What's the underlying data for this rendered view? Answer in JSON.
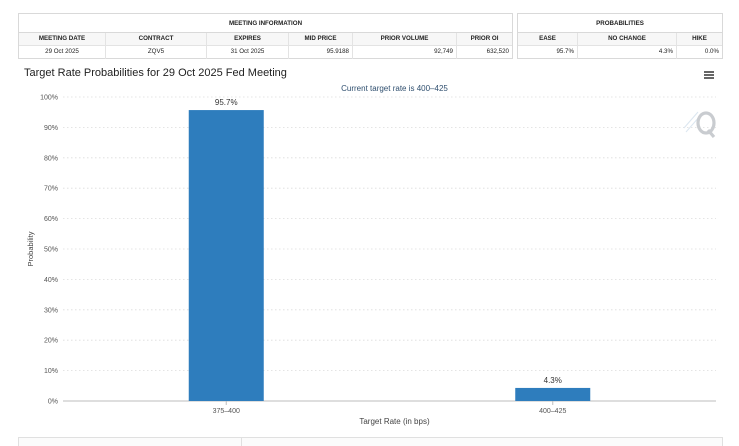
{
  "meeting_table": {
    "title": "MEETING INFORMATION",
    "headers": [
      "MEETING DATE",
      "CONTRACT",
      "EXPIRES",
      "MID PRICE",
      "PRIOR VOLUME",
      "PRIOR OI"
    ],
    "row": [
      "29 Oct 2025",
      "ZQV5",
      "31 Oct 2025",
      "95.9188",
      "92,749",
      "632,520"
    ]
  },
  "prob_table": {
    "title": "PROBABILITIES",
    "headers": [
      "EASE",
      "NO CHANGE",
      "HIKE"
    ],
    "row": [
      "95.7%",
      "4.3%",
      "0.0%"
    ]
  },
  "chart_data": {
    "type": "bar",
    "title": "Target Rate Probabilities for 29 Oct 2025 Fed Meeting",
    "subtitle": "Current target rate is 400–425",
    "xlabel": "Target Rate (in bps)",
    "ylabel": "Probability",
    "categories": [
      "375–400",
      "400–425"
    ],
    "values": [
      95.7,
      4.3
    ],
    "data_labels": [
      "95.7%",
      "4.3%"
    ],
    "ylim": [
      0,
      100
    ],
    "yticks": [
      0,
      10,
      20,
      30,
      40,
      50,
      60,
      70,
      80,
      90,
      100
    ],
    "ytick_labels": [
      "0%",
      "10%",
      "20%",
      "30%",
      "40%",
      "50%",
      "60%",
      "70%",
      "80%",
      "90%",
      "100%"
    ],
    "grid": true,
    "bar_color": "#2e7dbd",
    "grid_color": "#dcdcdc"
  }
}
